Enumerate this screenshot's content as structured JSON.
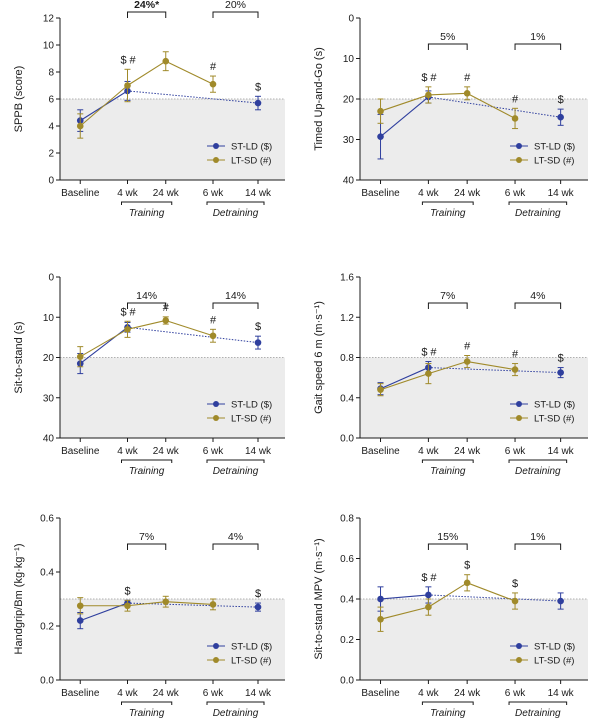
{
  "colors": {
    "st_ld": "#2f3f9e",
    "lt_sd": "#a08a2a",
    "shade": "#ececec",
    "threshold_line": "#999999",
    "axis": "#1a1a1a"
  },
  "common": {
    "categories": [
      "Baseline",
      "4 wk",
      "24 wk",
      "6 wk",
      "14 wk"
    ],
    "training_label": "Training",
    "detraining_label": "Detraining",
    "legend": {
      "st_ld": "ST-LD ($)",
      "lt_sd": "LT-SD (#)"
    }
  },
  "chart_data": [
    {
      "type": "line",
      "ylabel": "SPPB (score)",
      "ylim": [
        0,
        12
      ],
      "inverted": false,
      "yticks": [
        "0",
        "2",
        "4",
        "6",
        "8",
        "10",
        "12"
      ],
      "threshold": 6,
      "shade_region": "below",
      "series": [
        {
          "name": "ST-LD ($)",
          "values": [
            4.4,
            6.6,
            null,
            null,
            5.7
          ],
          "errors": [
            0.8,
            0.7,
            null,
            null,
            0.5
          ],
          "dashed_bridge": [
            1,
            4
          ]
        },
        {
          "name": "LT-SD (#)",
          "values": [
            4.0,
            7.0,
            8.8,
            7.1,
            null
          ],
          "errors": [
            0.9,
            1.2,
            0.7,
            0.6,
            null
          ]
        }
      ],
      "marks_st_ld": [
        "",
        "$",
        "",
        "",
        "$"
      ],
      "marks_lt_sd": [
        "",
        "#",
        "",
        "#",
        ""
      ],
      "brackets": [
        {
          "label": "24%*",
          "from": 1,
          "to": 2,
          "bold": true
        },
        {
          "label": "20%",
          "from": 3,
          "to": 4,
          "bold": false
        }
      ],
      "legend_position": "bottom-right"
    },
    {
      "type": "line",
      "ylabel": "Timed Up-and-Go (s)",
      "ylim": [
        0,
        40
      ],
      "inverted": true,
      "yticks": [
        "0",
        "10",
        "20",
        "30",
        "40"
      ],
      "threshold": 20,
      "shade_region": "below",
      "series": [
        {
          "name": "ST-LD ($)",
          "values": [
            29.3,
            19.5,
            null,
            null,
            24.5
          ],
          "errors": [
            5.5,
            1.5,
            null,
            null,
            2.0
          ],
          "dashed_bridge": [
            1,
            4
          ]
        },
        {
          "name": "LT-SD (#)",
          "values": [
            23.0,
            19.0,
            18.6,
            24.8,
            null
          ],
          "errors": [
            3.0,
            2.0,
            1.6,
            2.5,
            null
          ]
        }
      ],
      "marks_st_ld": [
        "",
        "$",
        "",
        "",
        "$"
      ],
      "marks_lt_sd": [
        "",
        "#",
        "#",
        "#",
        ""
      ],
      "brackets": [
        {
          "label": "5%",
          "from": 1,
          "to": 2,
          "bold": false
        },
        {
          "label": "1%",
          "from": 3,
          "to": 4,
          "bold": false
        }
      ],
      "legend_position": "bottom-right"
    },
    {
      "type": "line",
      "ylabel": "Sit-to-stand (s)",
      "ylim": [
        0,
        40
      ],
      "inverted": true,
      "yticks": [
        "0",
        "10",
        "20",
        "30",
        "40"
      ],
      "threshold": 20,
      "shade_region": "below",
      "series": [
        {
          "name": "ST-LD ($)",
          "values": [
            21.5,
            12.5,
            null,
            null,
            16.3
          ],
          "errors": [
            2.5,
            1.2,
            null,
            null,
            1.6
          ],
          "dashed_bridge": [
            1,
            4
          ]
        },
        {
          "name": "LT-SD (#)",
          "values": [
            19.8,
            13.0,
            10.8,
            14.6,
            null
          ],
          "errors": [
            2.5,
            2.0,
            0.9,
            1.6,
            null
          ]
        }
      ],
      "marks_st_ld": [
        "",
        "$",
        "",
        "",
        "$"
      ],
      "marks_lt_sd": [
        "",
        "#",
        "#",
        "#",
        ""
      ],
      "brackets": [
        {
          "label": "14%",
          "from": 1,
          "to": 2,
          "bold": false
        },
        {
          "label": "14%",
          "from": 3,
          "to": 4,
          "bold": false
        }
      ],
      "legend_position": "bottom-right"
    },
    {
      "type": "line",
      "ylabel": "Gait speed 6 m (m·s⁻¹)",
      "ylim": [
        0,
        1.6
      ],
      "inverted": false,
      "yticks": [
        "0.0",
        "0.4",
        "0.8",
        "1.2",
        "1.6"
      ],
      "threshold": 0.8,
      "shade_region": "below",
      "series": [
        {
          "name": "ST-LD ($)",
          "values": [
            0.49,
            0.7,
            null,
            null,
            0.65
          ],
          "errors": [
            0.06,
            0.06,
            null,
            null,
            0.05
          ],
          "dashed_bridge": [
            1,
            4
          ]
        },
        {
          "name": "LT-SD (#)",
          "values": [
            0.48,
            0.64,
            0.76,
            0.68,
            null
          ],
          "errors": [
            0.06,
            0.1,
            0.06,
            0.06,
            null
          ]
        }
      ],
      "marks_st_ld": [
        "",
        "$",
        "",
        "",
        "$"
      ],
      "marks_lt_sd": [
        "",
        "#",
        "#",
        "#",
        ""
      ],
      "brackets": [
        {
          "label": "7%",
          "from": 1,
          "to": 2,
          "bold": false
        },
        {
          "label": "4%",
          "from": 3,
          "to": 4,
          "bold": false
        }
      ],
      "legend_position": "bottom-right"
    },
    {
      "type": "line",
      "ylabel": "Handgrip/Bm (kg·kg⁻¹)",
      "ylim": [
        0,
        0.6
      ],
      "inverted": false,
      "yticks": [
        "0.0",
        "0.2",
        "0.4",
        "0.6"
      ],
      "threshold": 0.3,
      "shade_region": "below",
      "series": [
        {
          "name": "ST-LD ($)",
          "values": [
            0.22,
            0.285,
            null,
            null,
            0.27
          ],
          "errors": [
            0.03,
            0.01,
            null,
            null,
            0.015
          ],
          "dashed_bridge": [
            1,
            4
          ]
        },
        {
          "name": "LT-SD (#)",
          "values": [
            0.275,
            0.275,
            0.29,
            0.28,
            null
          ],
          "errors": [
            0.03,
            0.02,
            0.02,
            0.02,
            null
          ]
        }
      ],
      "marks_st_ld": [
        "",
        "$",
        "",
        "",
        "$"
      ],
      "marks_lt_sd": [
        "",
        "",
        "",
        "",
        ""
      ],
      "brackets": [
        {
          "label": "7%",
          "from": 1,
          "to": 2,
          "bold": false
        },
        {
          "label": "4%",
          "from": 3,
          "to": 4,
          "bold": false
        }
      ],
      "legend_position": "bottom-right"
    },
    {
      "type": "line",
      "ylabel": "Sit-to-stand MPV (m·s⁻¹)",
      "ylim": [
        0,
        0.8
      ],
      "inverted": false,
      "yticks": [
        "0.0",
        "0.2",
        "0.4",
        "0.6",
        "0.8"
      ],
      "threshold": 0.4,
      "shade_region": "below",
      "series": [
        {
          "name": "ST-LD ($)",
          "values": [
            0.4,
            0.42,
            null,
            null,
            0.39
          ],
          "errors": [
            0.06,
            0.04,
            null,
            null,
            0.04
          ],
          "dashed_bridge": [
            1,
            4
          ]
        },
        {
          "name": "LT-SD (#)",
          "values": [
            0.3,
            0.36,
            0.48,
            0.39,
            null
          ],
          "errors": [
            0.06,
            0.04,
            0.04,
            0.04,
            null
          ]
        }
      ],
      "marks_st_ld": [
        "",
        "$",
        "$",
        "$",
        ""
      ],
      "marks_lt_sd": [
        "",
        "#",
        "",
        "",
        ""
      ],
      "brackets": [
        {
          "label": "15%",
          "from": 1,
          "to": 2,
          "bold": false
        },
        {
          "label": "1%",
          "from": 3,
          "to": 4,
          "bold": false
        }
      ],
      "legend_position": "bottom-right"
    }
  ]
}
